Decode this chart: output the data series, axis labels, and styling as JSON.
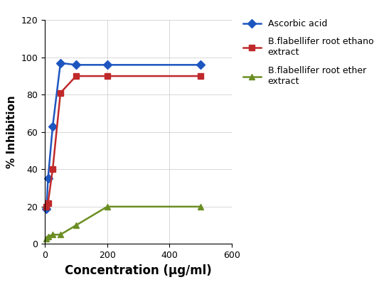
{
  "series": [
    {
      "label": "Ascorbic acid",
      "color": "#1E56C0",
      "marker": "D",
      "markersize": 6,
      "linewidth": 1.8,
      "x": [
        5,
        10,
        25,
        50,
        100,
        200,
        500
      ],
      "y": [
        19,
        35,
        63,
        97,
        96,
        96,
        96
      ]
    },
    {
      "label": "B.flabellifer root ethanolic\nextract",
      "color": "#C0292B",
      "marker": "s",
      "markersize": 6,
      "linewidth": 1.8,
      "x": [
        5,
        10,
        25,
        50,
        100,
        200,
        500
      ],
      "y": [
        20,
        22,
        40,
        81,
        90,
        90,
        90
      ]
    },
    {
      "label": "B.flabellifer root ether\nextract",
      "color": "#6B8E23",
      "marker": "^",
      "markersize": 6,
      "linewidth": 1.8,
      "x": [
        5,
        10,
        25,
        50,
        100,
        200,
        500
      ],
      "y": [
        3,
        4,
        5,
        5,
        10,
        20,
        20
      ]
    }
  ],
  "xlabel": "Concentration (μg/ml)",
  "ylabel": "% Inhibition",
  "xlim": [
    0,
    560
  ],
  "ylim": [
    0,
    120
  ],
  "xticks": [
    0,
    200,
    400,
    600
  ],
  "yticks": [
    0,
    20,
    40,
    60,
    80,
    100,
    120
  ],
  "grid": true,
  "background_color": "#ffffff",
  "xlabel_fontsize": 12,
  "ylabel_fontsize": 11,
  "tick_fontsize": 9,
  "legend_fontsize": 9
}
